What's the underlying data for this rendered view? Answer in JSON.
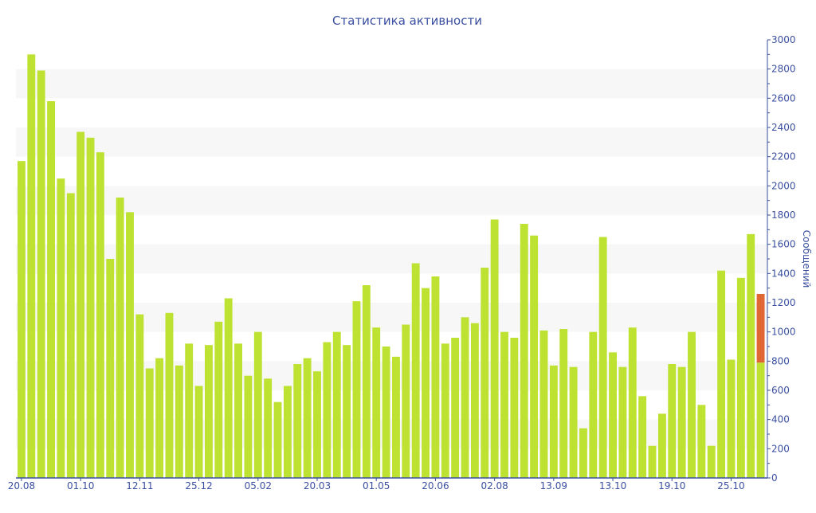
{
  "chart_data": {
    "type": "bar",
    "title": "Статистика активности",
    "ylabel": "Сообщений",
    "ylim": [
      0,
      3000
    ],
    "y_ticks": [
      0,
      200,
      400,
      600,
      800,
      1000,
      1200,
      1400,
      1600,
      1800,
      2000,
      2200,
      2400,
      2600,
      2800,
      3000
    ],
    "y_axis_side": "right",
    "grid": "alternating horizontal bands",
    "x_tick_labels": [
      {
        "index": 0,
        "label": "20.08"
      },
      {
        "index": 6,
        "label": "01.10"
      },
      {
        "index": 12,
        "label": "12.11"
      },
      {
        "index": 18,
        "label": "25.12"
      },
      {
        "index": 24,
        "label": "05.02"
      },
      {
        "index": 30,
        "label": "20.03"
      },
      {
        "index": 36,
        "label": "01.05"
      },
      {
        "index": 42,
        "label": "20.06"
      },
      {
        "index": 48,
        "label": "02.08"
      },
      {
        "index": 54,
        "label": "13.09"
      },
      {
        "index": 60,
        "label": "13.10"
      },
      {
        "index": 66,
        "label": "19.10"
      },
      {
        "index": 72,
        "label": "25.10"
      }
    ],
    "series": [
      {
        "color": "#bde232",
        "values": [
          2170,
          2900,
          2790,
          2580,
          2050,
          1950,
          2370,
          2330,
          2230,
          1500,
          1920,
          1820,
          1120,
          750,
          820,
          1130,
          770,
          920,
          630,
          910,
          1070,
          1230,
          920,
          700,
          1000,
          680,
          520,
          630,
          780,
          820,
          730,
          930,
          1000,
          910,
          1210,
          1320,
          1030,
          900,
          830,
          1050,
          1470,
          1300,
          1380,
          920,
          960,
          1100,
          1060,
          1440,
          1770,
          1000,
          960,
          1740,
          1660,
          1010,
          770,
          1020,
          760,
          340,
          1000,
          1650,
          860,
          760,
          1030,
          560,
          220,
          440,
          780,
          760,
          1000,
          500,
          220,
          1420,
          810,
          1370,
          1670,
          790
        ]
      }
    ],
    "highlight": {
      "index": 75,
      "from": 790,
      "to": 1260,
      "color": "#e06633"
    },
    "colors": {
      "axis": "#3a4fa0",
      "band": "#f7f7f7"
    }
  }
}
